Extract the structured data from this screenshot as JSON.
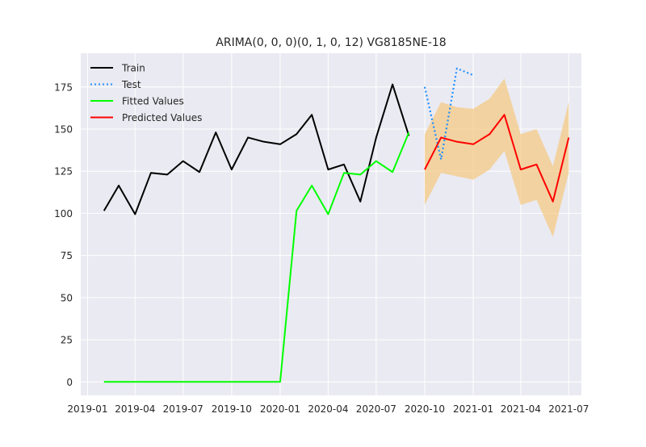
{
  "chart_data": {
    "type": "line",
    "title": "ARIMA(0, 0, 0)(0, 1, 0, 12) VG8185NE-18",
    "xlabel": "",
    "ylabel": "",
    "xlim": [
      "2018-12-19",
      "2021-07-25"
    ],
    "ylim": [
      -8,
      195
    ],
    "grid": true,
    "legend_position": "top-left",
    "x_ticks": [
      "2019-01-01",
      "2019-04-01",
      "2019-07-01",
      "2019-10-01",
      "2020-01-01",
      "2020-04-01",
      "2020-07-01",
      "2020-10-01",
      "2021-01-01",
      "2021-04-01",
      "2021-07-01"
    ],
    "x_tick_labels": [
      "2019-01",
      "2019-04",
      "2019-07",
      "2019-10",
      "2020-01",
      "2020-04",
      "2020-07",
      "2020-10",
      "2021-01",
      "2021-04",
      "2021-07"
    ],
    "y_ticks": [
      0,
      25,
      50,
      75,
      100,
      125,
      150,
      175
    ],
    "y_tick_labels": [
      "0",
      "25",
      "50",
      "75",
      "100",
      "125",
      "150",
      "175"
    ],
    "series": [
      {
        "name": "Train",
        "color": "#000000",
        "style": "solid",
        "x": [
          "2019-02-01",
          "2019-03-01",
          "2019-04-01",
          "2019-05-01",
          "2019-06-01",
          "2019-07-01",
          "2019-08-01",
          "2019-09-01",
          "2019-10-01",
          "2019-11-01",
          "2019-12-01",
          "2020-01-01",
          "2020-02-01",
          "2020-03-01",
          "2020-04-01",
          "2020-05-01",
          "2020-06-01",
          "2020-07-01",
          "2020-08-01",
          "2020-09-01"
        ],
        "values": [
          101.5,
          116.5,
          99.5,
          124,
          123,
          131,
          124.5,
          148,
          126,
          145,
          142.5,
          141,
          147,
          158.5,
          126,
          129,
          107,
          145,
          176.5,
          146
        ]
      },
      {
        "name": "Test",
        "color": "#1e90ff",
        "style": "dotted",
        "x": [
          "2020-10-01",
          "2020-11-01",
          "2020-12-01",
          "2021-01-01"
        ],
        "values": [
          175,
          132,
          186,
          182
        ]
      },
      {
        "name": "Fitted Values",
        "color": "#00ff00",
        "style": "solid",
        "x": [
          "2019-02-01",
          "2019-03-01",
          "2019-04-01",
          "2019-05-01",
          "2019-06-01",
          "2019-07-01",
          "2019-08-01",
          "2019-09-01",
          "2019-10-01",
          "2019-11-01",
          "2019-12-01",
          "2020-01-01",
          "2020-02-01",
          "2020-03-01",
          "2020-04-01",
          "2020-05-01",
          "2020-06-01",
          "2020-07-01",
          "2020-08-01",
          "2020-09-01"
        ],
        "values": [
          0,
          0,
          0,
          0,
          0,
          0,
          0,
          0,
          0,
          0,
          0,
          0,
          101.5,
          116.5,
          99.5,
          124,
          123,
          131,
          124.5,
          148
        ]
      },
      {
        "name": "Predicted Values",
        "color": "#ff0000",
        "style": "solid",
        "x": [
          "2020-10-01",
          "2020-11-01",
          "2020-12-01",
          "2021-01-01",
          "2021-02-01",
          "2021-03-01",
          "2021-04-01",
          "2021-05-01",
          "2021-06-01",
          "2021-07-01"
        ],
        "values": [
          126,
          145,
          142.5,
          141,
          147,
          158.5,
          126,
          129,
          107,
          145
        ]
      }
    ],
    "confidence_band": {
      "color": "#f5c77e",
      "x": [
        "2020-10-01",
        "2020-11-01",
        "2020-12-01",
        "2021-01-01",
        "2021-02-01",
        "2021-03-01",
        "2021-04-01",
        "2021-05-01",
        "2021-06-01",
        "2021-07-01"
      ],
      "lower": [
        105,
        124,
        122,
        120,
        126,
        137,
        105,
        108,
        86,
        124
      ],
      "upper": [
        147,
        166,
        163,
        162,
        168,
        180,
        147,
        150,
        128,
        166
      ]
    }
  },
  "colors": {
    "plot_background": "#eaeaf2",
    "grid": "#ffffff",
    "figure_background": "#ffffff"
  }
}
